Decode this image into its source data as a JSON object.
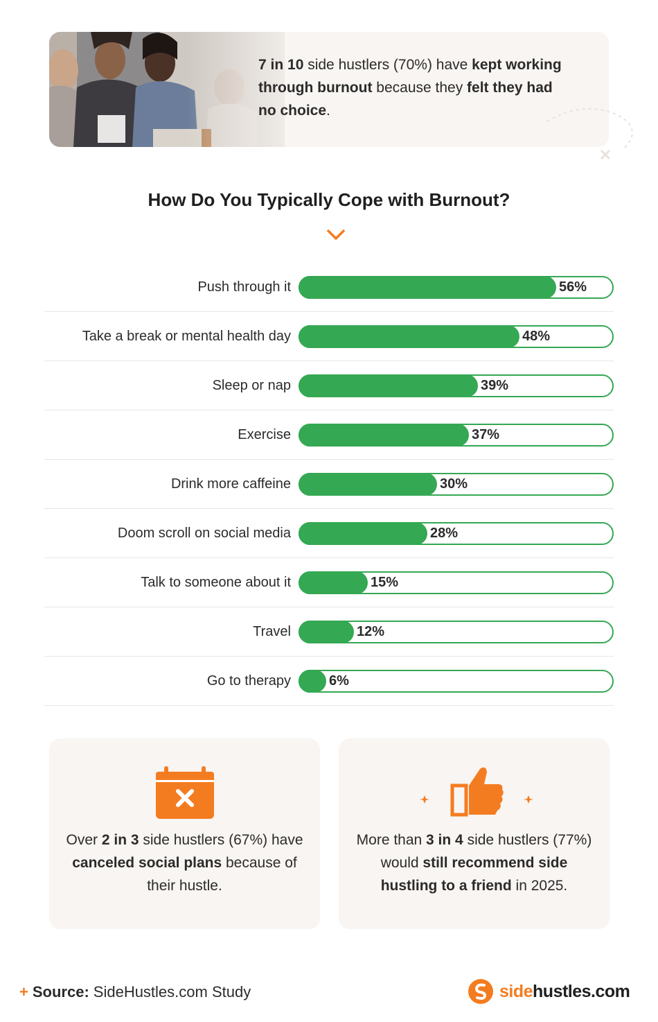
{
  "header": {
    "stat_parts": [
      {
        "text": "7 in 10",
        "bold": true
      },
      {
        "text": " side hustlers (70%) have ",
        "bold": false
      },
      {
        "text": "kept working through burnout",
        "bold": true
      },
      {
        "text": " because they ",
        "bold": false
      },
      {
        "text": "felt they had no choice",
        "bold": true
      },
      {
        "text": ".",
        "bold": false
      }
    ]
  },
  "chart_data": {
    "type": "bar",
    "title": "How Do You Typically Cope with Burnout?",
    "orientation": "horizontal",
    "categories": [
      "Push through it",
      "Take a break or mental health day",
      "Sleep or nap",
      "Exercise",
      "Drink more caffeine",
      "Doom scroll on social media",
      "Talk to someone about it",
      "Travel",
      "Go to therapy"
    ],
    "values": [
      56,
      48,
      39,
      37,
      30,
      28,
      15,
      12,
      6
    ],
    "value_suffix": "%",
    "xlim": [
      0,
      60
    ],
    "bar_color": "#34a853",
    "grid": false
  },
  "cards": [
    {
      "icon": "calendar-x-icon",
      "parts": [
        {
          "text": "Over ",
          "bold": false
        },
        {
          "text": "2 in 3",
          "bold": true
        },
        {
          "text": " side hustlers (67%) have ",
          "bold": false
        },
        {
          "text": "canceled social plans",
          "bold": true
        },
        {
          "text": " because of their hustle.",
          "bold": false
        }
      ]
    },
    {
      "icon": "thumbs-up-icon",
      "parts": [
        {
          "text": "More than ",
          "bold": false
        },
        {
          "text": "3 in 4",
          "bold": true
        },
        {
          "text": " side hustlers (77%) would ",
          "bold": false
        },
        {
          "text": "still recommend side hustling to a friend",
          "bold": true
        },
        {
          "text": " in 2025.",
          "bold": false
        }
      ]
    }
  ],
  "footer": {
    "plus": "+",
    "source_label": "Source:",
    "source_value": "SideHustles.com Study",
    "logo_orange": "side",
    "logo_dark": "hustles.com"
  },
  "colors": {
    "accent": "#f47c20",
    "bar": "#34a853",
    "card_bg": "#f8f5f2"
  }
}
